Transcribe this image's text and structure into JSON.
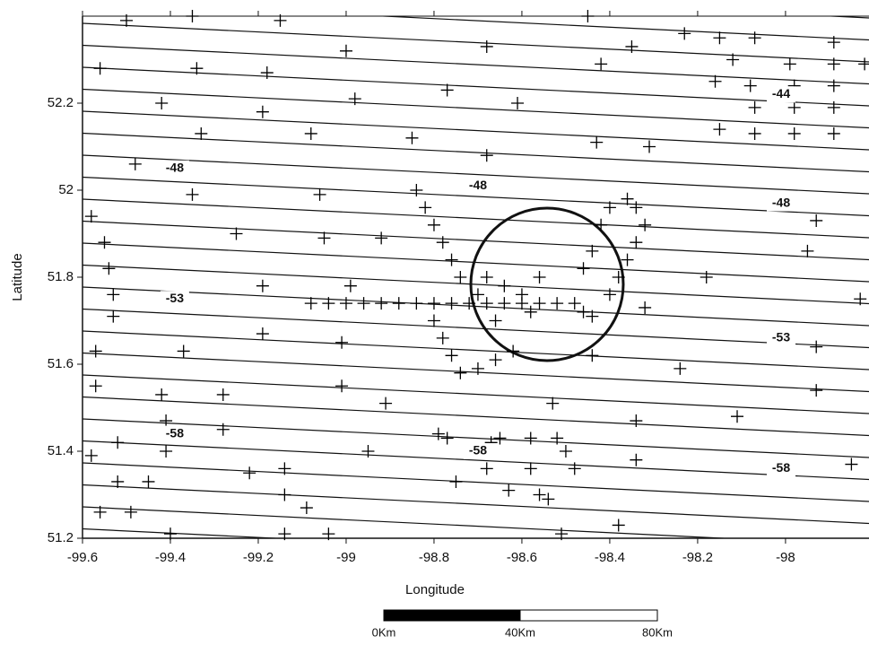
{
  "chart_data": {
    "type": "scatter",
    "xlabel": "Longitude",
    "ylabel": "Latitude",
    "xlim": [
      -99.6,
      -97.81
    ],
    "ylim": [
      51.2,
      52.4
    ],
    "xticks": [
      -99.6,
      -99.4,
      -99.2,
      -99,
      -98.8,
      -98.6,
      -98.4,
      -98.2,
      -98
    ],
    "yticks": [
      51.2,
      51.4,
      51.6,
      51.8,
      52,
      52.2
    ],
    "color": "#000000",
    "x": [
      -99.5,
      -99.35,
      -99.15,
      -99.56,
      -99.34,
      -99.18,
      -99.0,
      -99.42,
      -99.19,
      -98.98,
      -98.77,
      -98.68,
      -98.61,
      -98.45,
      -98.42,
      -98.35,
      -98.23,
      -98.15,
      -98.07,
      -98.12,
      -97.99,
      -97.89,
      -97.89,
      -97.82,
      -98.16,
      -98.08,
      -97.98,
      -97.89,
      -98.07,
      -97.98,
      -97.89,
      -98.15,
      -98.07,
      -97.98,
      -97.89,
      -99.33,
      -99.08,
      -98.85,
      -98.68,
      -98.43,
      -98.31,
      -99.48,
      -99.35,
      -99.06,
      -99.58,
      -99.55,
      -99.25,
      -99.05,
      -98.92,
      -99.54,
      -99.53,
      -99.53,
      -99.19,
      -98.99,
      -98.18,
      -97.93,
      -97.95,
      -97.83,
      -98.32,
      -99.19,
      -99.01,
      -99.37,
      -99.57,
      -99.57,
      -99.42,
      -99.28,
      -99.01,
      -98.91,
      -98.44,
      -98.24,
      -98.11,
      -97.93,
      -97.93,
      -99.41,
      -99.28,
      -99.52,
      -99.41,
      -99.58,
      -98.95,
      -98.79,
      -98.77,
      -98.65,
      -98.58,
      -98.52,
      -98.34,
      -98.34,
      -98.53,
      -98.67,
      -98.68,
      -98.58,
      -98.48,
      -98.5,
      -98.75,
      -98.63,
      -98.56,
      -98.54,
      -99.22,
      -99.14,
      -99.14,
      -99.09,
      -99.52,
      -99.45,
      -99.56,
      -99.49,
      -99.4,
      -99.14,
      -99.04,
      -98.51,
      -98.38,
      -97.85,
      -99.08,
      -99.04,
      -99.0,
      -98.96,
      -98.92,
      -98.88,
      -98.84,
      -98.8,
      -98.76,
      -98.72,
      -98.68,
      -98.64,
      -98.6,
      -98.56,
      -98.52,
      -98.84,
      -98.82,
      -98.8,
      -98.78,
      -98.76,
      -98.74,
      -98.8,
      -98.78,
      -98.76,
      -98.74,
      -98.7,
      -98.66,
      -98.62,
      -98.4,
      -98.38,
      -98.36,
      -98.34,
      -98.32,
      -98.34,
      -98.36,
      -98.4,
      -98.42,
      -98.44,
      -98.46,
      -98.48,
      -98.46,
      -98.44,
      -98.68,
      -98.64,
      -98.6,
      -98.58,
      -98.66,
      -98.7,
      -98.56
    ],
    "values": [
      52.39,
      52.4,
      52.39,
      52.28,
      52.28,
      52.27,
      52.32,
      52.2,
      52.18,
      52.21,
      52.23,
      52.33,
      52.2,
      52.4,
      52.29,
      52.33,
      52.36,
      52.35,
      52.35,
      52.3,
      52.29,
      52.34,
      52.29,
      52.29,
      52.25,
      52.24,
      52.24,
      52.24,
      52.19,
      52.19,
      52.19,
      52.14,
      52.13,
      52.13,
      52.13,
      52.13,
      52.13,
      52.12,
      52.08,
      52.11,
      52.1,
      52.06,
      51.99,
      51.99,
      51.94,
      51.88,
      51.9,
      51.89,
      51.89,
      51.82,
      51.76,
      51.71,
      51.78,
      51.78,
      51.8,
      51.93,
      51.86,
      51.75,
      51.73,
      51.67,
      51.65,
      51.63,
      51.63,
      51.55,
      51.53,
      51.53,
      51.55,
      51.51,
      51.62,
      51.59,
      51.48,
      51.64,
      51.54,
      51.47,
      51.45,
      51.42,
      51.4,
      51.39,
      51.4,
      51.44,
      51.43,
      51.43,
      51.43,
      51.43,
      51.38,
      51.47,
      51.51,
      51.42,
      51.36,
      51.36,
      51.36,
      51.4,
      51.33,
      51.31,
      51.3,
      51.29,
      51.35,
      51.36,
      51.3,
      51.27,
      51.33,
      51.33,
      51.26,
      51.26,
      51.21,
      51.21,
      51.21,
      51.21,
      51.23,
      51.37,
      51.74,
      51.74,
      51.74,
      51.74,
      51.74,
      51.74,
      51.74,
      51.74,
      51.74,
      51.74,
      51.74,
      51.74,
      51.74,
      51.74,
      51.74,
      52.0,
      51.96,
      51.92,
      51.88,
      51.84,
      51.8,
      51.7,
      51.66,
      51.62,
      51.58,
      51.59,
      51.61,
      51.63,
      51.76,
      51.8,
      51.84,
      51.88,
      51.92,
      51.96,
      51.98,
      51.96,
      51.92,
      51.86,
      51.82,
      51.74,
      51.72,
      51.71,
      51.8,
      51.78,
      51.76,
      51.72,
      51.7,
      51.76,
      51.8
    ],
    "annotations": [
      {
        "text": "-44",
        "x": -98.01,
        "y": 52.22
      },
      {
        "text": "-48",
        "x": -99.39,
        "y": 52.05
      },
      {
        "text": "-48",
        "x": -98.7,
        "y": 52.01
      },
      {
        "text": "-48",
        "x": -98.01,
        "y": 51.97
      },
      {
        "text": "-53",
        "x": -99.39,
        "y": 51.75
      },
      {
        "text": "-53",
        "x": -98.01,
        "y": 51.66
      },
      {
        "text": "-58",
        "x": -99.39,
        "y": 51.44
      },
      {
        "text": "-58",
        "x": -98.7,
        "y": 51.4
      },
      {
        "text": "-58",
        "x": -98.01,
        "y": 51.36
      }
    ],
    "scale_bar": {
      "labels": [
        "0Km",
        "40Km",
        "80Km"
      ]
    }
  }
}
